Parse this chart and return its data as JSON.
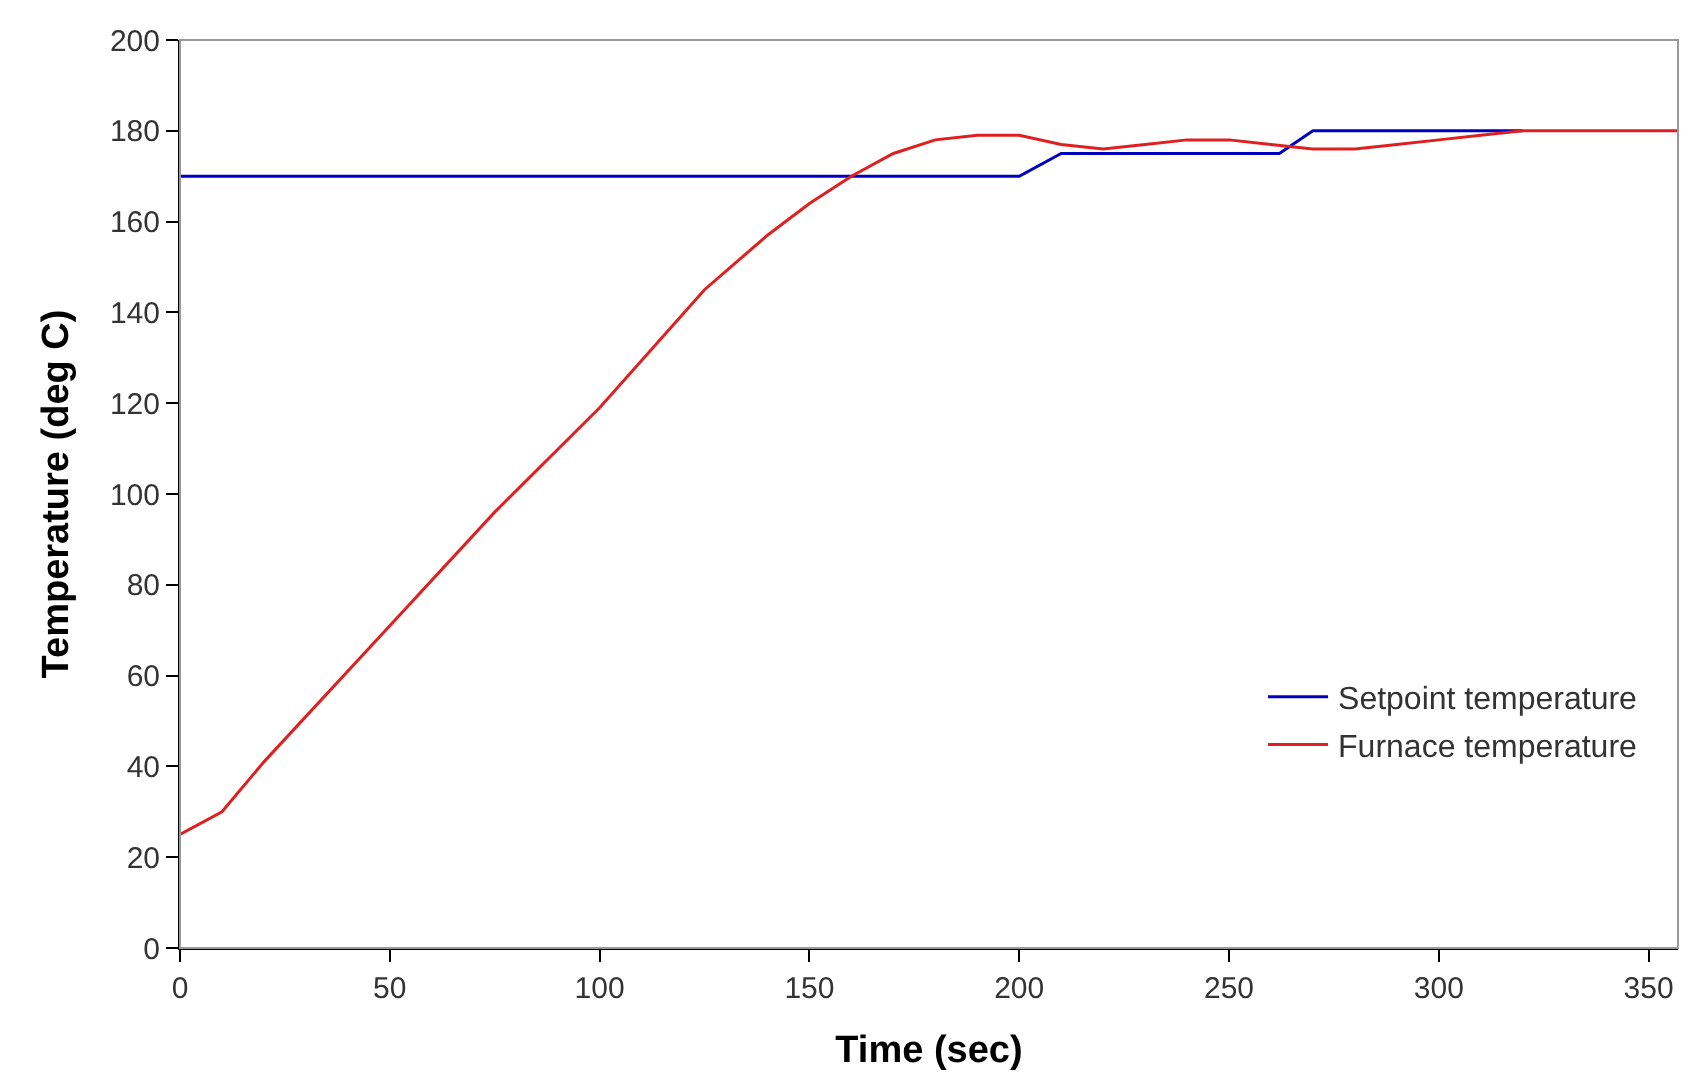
{
  "chart_data": {
    "type": "line",
    "xlabel": "Time (sec)",
    "ylabel": "Temperature (deg C)",
    "xlim": [
      0,
      357
    ],
    "xticks": [
      0,
      50,
      100,
      150,
      200,
      250,
      300,
      350
    ],
    "ylim": [
      0,
      200
    ],
    "yticks": [
      0,
      20,
      40,
      60,
      80,
      100,
      120,
      140,
      160,
      180,
      200
    ],
    "legend": "bottom right",
    "marker": "none",
    "line_style": "solid",
    "series": [
      {
        "name": "Setpoint temperature",
        "color": "#0000c0",
        "x": [
          0,
          200,
          210,
          262,
          270,
          320
        ],
        "values": [
          170,
          170,
          175,
          175,
          180,
          180
        ]
      },
      {
        "name": "Furnace temperature",
        "color": "#e02020",
        "x": [
          0,
          10,
          20,
          50,
          75,
          100,
          125,
          140,
          150,
          160,
          170,
          180,
          190,
          200,
          210,
          220,
          230,
          240,
          250,
          260,
          270,
          280,
          290,
          300,
          310,
          320,
          357
        ],
        "values": [
          25,
          30,
          41,
          71,
          96,
          119,
          145,
          157,
          164,
          170,
          175,
          178,
          179,
          179,
          177,
          176,
          177,
          178,
          178,
          177,
          176,
          176,
          177,
          178,
          179,
          180,
          180
        ]
      }
    ]
  }
}
